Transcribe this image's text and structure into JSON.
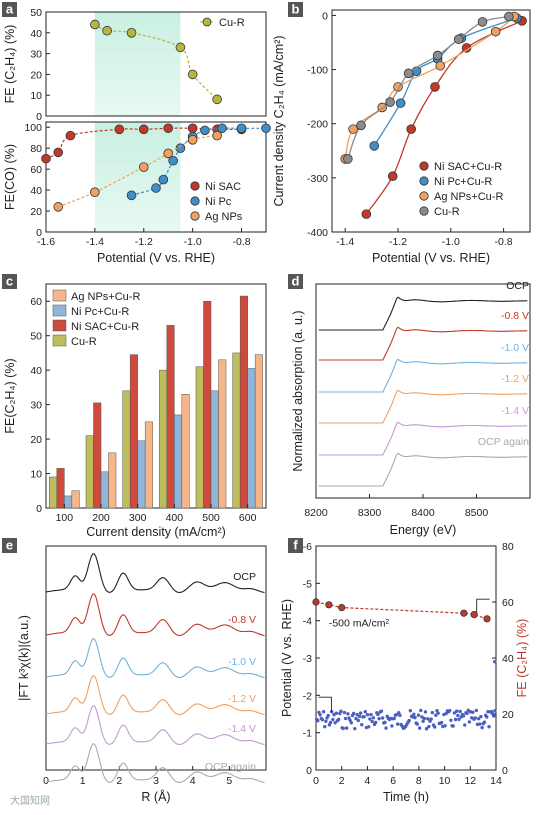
{
  "watermark": "大国知网",
  "chart_data": [
    {
      "panel": "a",
      "type": "scatter",
      "subplots": [
        {
          "ylabel": "FE (C₂H₄) (%)",
          "ylim": [
            0,
            50
          ],
          "yticks": [
            "0",
            "10",
            "20",
            "30",
            "40",
            "50"
          ],
          "series": [
            {
              "name": "Cu-R",
              "color": "#b7b640",
              "x": [
                -1.4,
                -1.35,
                -1.25,
                -1.05,
                -1.0,
                -0.9
              ],
              "y": [
                44,
                41,
                40,
                33,
                20,
                8
              ]
            }
          ]
        },
        {
          "ylabel": "FE(CO) (%)",
          "ylim": [
            0,
            105
          ],
          "yticks": [
            "0",
            "20",
            "40",
            "60",
            "80",
            "100"
          ],
          "series": [
            {
              "name": "Ni SAC",
              "color": "#c0392b",
              "x": [
                -1.6,
                -1.55,
                -1.5,
                -1.3,
                -1.2,
                -1.1,
                -1.0,
                -0.9,
                -0.8
              ],
              "y": [
                70,
                76,
                92,
                98,
                98,
                99,
                99,
                98,
                98
              ]
            },
            {
              "name": "Ni Pc",
              "color": "#3e8fc7",
              "x": [
                -1.25,
                -1.15,
                -1.12,
                -1.08,
                -1.05,
                -1.0,
                -0.95,
                -0.88,
                -0.8,
                -0.7
              ],
              "y": [
                35,
                42,
                50,
                68,
                80,
                91,
                97,
                99,
                99,
                99
              ]
            },
            {
              "name": "Ag NPs",
              "color": "#f0a060",
              "x": [
                -1.55,
                -1.4,
                -1.2,
                -1.1,
                -1.0,
                -0.9
              ],
              "y": [
                24,
                38,
                62,
                75,
                88,
                92
              ]
            }
          ]
        }
      ],
      "xlabel": "Potential (V vs. RHE)",
      "xlim": [
        -1.6,
        -0.7
      ],
      "xticks": [
        "-1.6",
        "-1.4",
        "-1.2",
        "-1.0",
        "-0.8"
      ],
      "shaded_x": [
        -1.4,
        -1.05
      ]
    },
    {
      "panel": "b",
      "type": "scatter",
      "xlabel": "Potential (V vs. RHE)",
      "ylabel": "Current density C₂H₄ (mA/cm²)",
      "xlim": [
        -1.45,
        -0.7
      ],
      "ylim": [
        -400,
        10
      ],
      "xticks": [
        "-1.4",
        "-1.2",
        "-1.0",
        "-0.8"
      ],
      "yticks": [
        "0",
        "-100",
        "-200",
        "-300",
        "-400"
      ],
      "series": [
        {
          "name": "Ni SAC+Cu-R",
          "color": "#c0392b",
          "x": [
            -1.32,
            -1.22,
            -1.15,
            -1.06,
            -0.94,
            -0.73
          ],
          "y": [
            -367,
            -297,
            -210,
            -132,
            -60,
            -10
          ]
        },
        {
          "name": "Ni Pc+Cu-R",
          "color": "#3e8fc7",
          "x": [
            -1.29,
            -1.19,
            -1.13,
            -1.05,
            -0.96,
            -0.75
          ],
          "y": [
            -241,
            -162,
            -103,
            -80,
            -42,
            -5
          ]
        },
        {
          "name": "Ag NPs+Cu-R",
          "color": "#f0a060",
          "x": [
            -1.4,
            -1.37,
            -1.26,
            -1.2,
            -1.04,
            -0.83,
            -0.76
          ],
          "y": [
            -265,
            -210,
            -170,
            -132,
            -93,
            -30,
            -2
          ]
        },
        {
          "name": "Cu-R",
          "color": "#8c8c8c",
          "x": [
            -1.39,
            -1.34,
            -1.23,
            -1.16,
            -1.05,
            -0.97,
            -0.88,
            -0.78
          ],
          "y": [
            -265,
            -203,
            -160,
            -107,
            -74,
            -44,
            -12,
            -2
          ]
        }
      ]
    },
    {
      "panel": "c",
      "type": "bar",
      "xlabel": "Current density (mA/cm²)",
      "ylabel": "FE(C₂H₄) (%)",
      "ylim": [
        0,
        65
      ],
      "yticks": [
        "0",
        "10",
        "20",
        "30",
        "40",
        "50",
        "60"
      ],
      "categories": [
        "100",
        "200",
        "300",
        "400",
        "500",
        "600"
      ],
      "series": [
        {
          "name": "Cu-R",
          "color": "#bdbd5c",
          "values": [
            9,
            21,
            34,
            40,
            41,
            45
          ]
        },
        {
          "name": "Ni SAC+Cu-R",
          "color": "#cf4a3c",
          "values": [
            11.5,
            30.5,
            44.5,
            53,
            60,
            61.5
          ]
        },
        {
          "name": "Ni Pc+Cu-R",
          "color": "#8fb6d9",
          "values": [
            3.5,
            10.5,
            19.5,
            27,
            34,
            40.5
          ]
        },
        {
          "name": "Ag NPs+Cu-R",
          "color": "#f7b68a",
          "values": [
            5,
            16,
            25,
            33,
            43,
            44.5
          ]
        }
      ]
    },
    {
      "panel": "d",
      "type": "line",
      "xlabel": "Energy (eV)",
      "ylabel": "Normalized absorption (a. u.)",
      "xlim": [
        8200,
        8600
      ],
      "xticks": [
        "8200",
        "8300",
        "8400",
        "8500"
      ],
      "series": [
        {
          "name": "OCP",
          "color": "#222222"
        },
        {
          "name": "-0.8 V",
          "color": "#c0392b"
        },
        {
          "name": "-1.0 V",
          "color": "#6fb2dc"
        },
        {
          "name": "-1.2 V",
          "color": "#f0a060"
        },
        {
          "name": "-1.4 V",
          "color": "#c39bd3"
        },
        {
          "name": "OCP again",
          "color": "#aaaaaa"
        }
      ]
    },
    {
      "panel": "e",
      "type": "line",
      "xlabel": "R (Å)",
      "ylabel": "|FT k³χ(k)|(a.u.)",
      "xlim": [
        0,
        6
      ],
      "xticks": [
        "0",
        "1",
        "2",
        "3",
        "4",
        "5"
      ],
      "series": [
        {
          "name": "OCP",
          "color": "#222222"
        },
        {
          "name": "-0.8 V",
          "color": "#c0392b"
        },
        {
          "name": "-1.0 V",
          "color": "#6fb2dc"
        },
        {
          "name": "-1.2 V",
          "color": "#f0a060"
        },
        {
          "name": "-1.4 V",
          "color": "#c39bd3"
        },
        {
          "name": "OCP again",
          "color": "#aaaaaa"
        }
      ]
    },
    {
      "panel": "f",
      "type": "scatter",
      "xlabel": "Time (h)",
      "ylabel_left": "Potential (V vs. RHE)",
      "ylabel_right": "FE (C₂H₄) (%)",
      "xlim": [
        0,
        14
      ],
      "ylim_left": [
        0,
        -6
      ],
      "ylim_right": [
        0,
        80
      ],
      "xticks": [
        "0",
        "2",
        "4",
        "6",
        "8",
        "10",
        "12",
        "14"
      ],
      "yticks_left": [
        "0",
        "-1",
        "-2",
        "-3",
        "-4",
        "-5",
        "-6"
      ],
      "yticks_right": [
        "0",
        "20",
        "40",
        "60",
        "80"
      ],
      "annotation": "-500 mA/cm²",
      "fe_series": {
        "color": "#c0392b",
        "x": [
          0,
          1,
          2,
          11.5,
          12.3,
          13.3
        ],
        "y": [
          60,
          59,
          58,
          56,
          55.5,
          54
        ]
      },
      "potential_series": {
        "color": "#4a5fc1",
        "mean": -1.35
      }
    }
  ]
}
